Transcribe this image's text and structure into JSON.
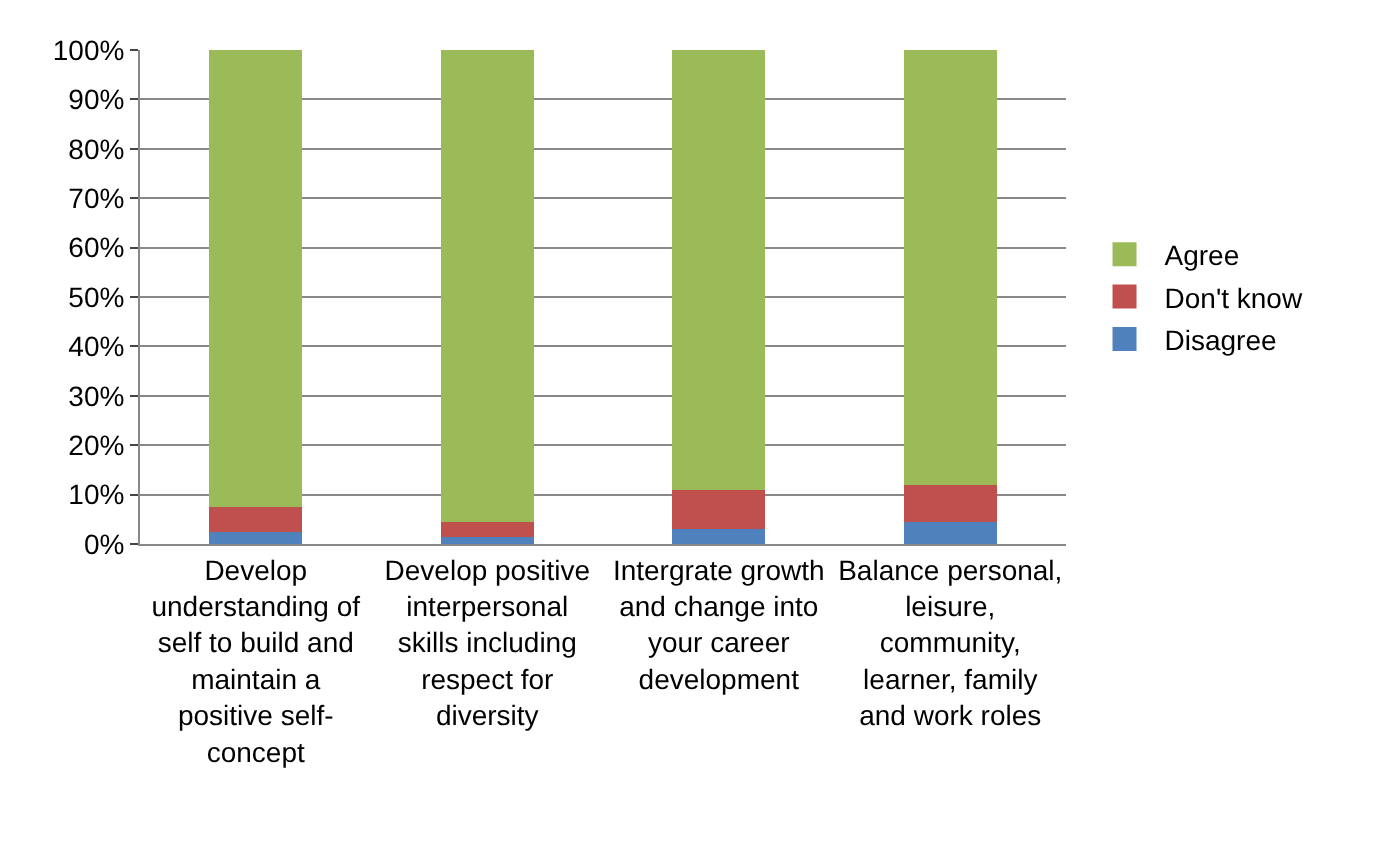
{
  "chart_data": {
    "type": "bar",
    "stacked": true,
    "categories": [
      "Develop understanding of self to build and maintain a positive self-concept",
      "Develop positive interpersonal skills including respect for diversity",
      "Intergrate growth and change into your career development",
      "Balance personal, leisure, community, learner, family and work roles"
    ],
    "series": [
      {
        "name": "Disagree",
        "color": "#4f81bd",
        "values": [
          2.5,
          1.5,
          3,
          4.5
        ]
      },
      {
        "name": "Don't know",
        "color": "#c0504d",
        "values": [
          5,
          3,
          8,
          7.5
        ]
      },
      {
        "name": "Agree",
        "color": "#9bbb59",
        "values": [
          92.5,
          95.5,
          89,
          88
        ]
      }
    ],
    "ylim": [
      0,
      100
    ],
    "yticks": [
      {
        "value": 0,
        "label": "0%"
      },
      {
        "value": 10,
        "label": "10%"
      },
      {
        "value": 20,
        "label": "20%"
      },
      {
        "value": 30,
        "label": "30%"
      },
      {
        "value": 40,
        "label": "40%"
      },
      {
        "value": 50,
        "label": "50%"
      },
      {
        "value": 60,
        "label": "60%"
      },
      {
        "value": 70,
        "label": "70%"
      },
      {
        "value": 80,
        "label": "80%"
      },
      {
        "value": 90,
        "label": "90%"
      },
      {
        "value": 100,
        "label": "100%"
      }
    ],
    "grid": "y",
    "legend": "right"
  }
}
